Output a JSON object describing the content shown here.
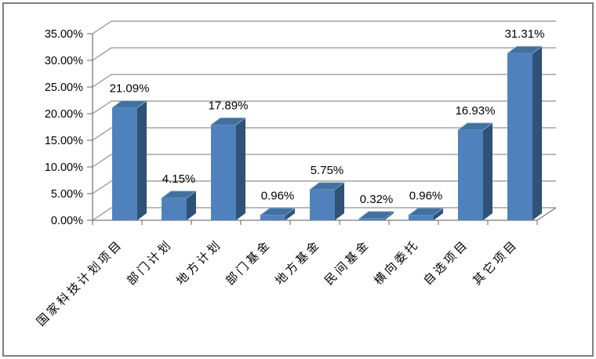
{
  "frame": {
    "border_color": "#7F7F7F",
    "background": "#FFFFFF"
  },
  "chart_data": {
    "type": "bar",
    "style": "3d-clustered-column",
    "title": "",
    "xlabel": "",
    "ylabel": "",
    "legend": "none",
    "grid": true,
    "categories": [
      "国家科技计划项目",
      "部门计划",
      "地方计划",
      "部门基金",
      "地方基金",
      "民间基金",
      "横向委托",
      "自选项目",
      "其它项目"
    ],
    "values": [
      21.09,
      4.15,
      17.89,
      0.96,
      5.75,
      0.32,
      0.96,
      16.93,
      31.31
    ],
    "data_labels": [
      "21.09%",
      "4.15%",
      "17.89%",
      "0.96%",
      "5.75%",
      "0.32%",
      "0.96%",
      "16.93%",
      "31.31%"
    ],
    "y_tick_labels": [
      "0.00%",
      "5.00%",
      "10.00%",
      "15.00%",
      "20.00%",
      "25.00%",
      "30.00%",
      "35.00%"
    ],
    "ylim": [
      0,
      35
    ],
    "y_step": 5,
    "colors": {
      "bar_front": "#4F81BD",
      "bar_top": "#42709F",
      "bar_side": "#2F5276",
      "bar_edge_highlight": "#8FAFD4",
      "gridline": "#919191",
      "axis": "#7A7A7A",
      "text": "#000000"
    }
  }
}
